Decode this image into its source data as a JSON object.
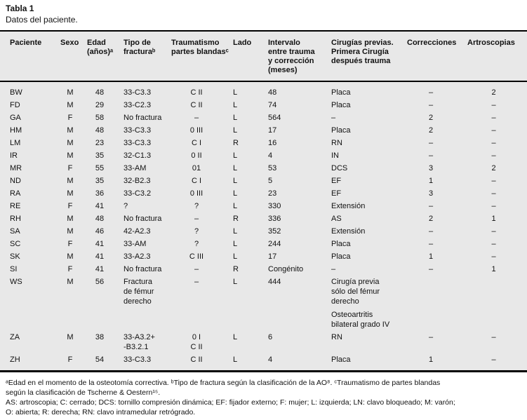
{
  "title": "Tabla 1",
  "subtitle": "Datos del paciente.",
  "colors": {
    "table_background": "#e8e8e8",
    "rule": "#000000",
    "text": "#111111"
  },
  "table": {
    "columns": [
      {
        "label": "Paciente"
      },
      {
        "label": "Sexo"
      },
      {
        "label": "Edad\n(años)ᵃ"
      },
      {
        "label": "Tipo de\nfracturaᵇ"
      },
      {
        "label": "Traumatismo\npartes blandasᶜ"
      },
      {
        "label": "Lado"
      },
      {
        "label": "Intervalo\nentre trauma\ny corrección\n(meses)"
      },
      {
        "label": "Cirugías previas.\nPrimera Cirugía\ndespués trauma"
      },
      {
        "label": "Correcciones"
      },
      {
        "label": "Artroscopias"
      }
    ],
    "rows": [
      [
        "BW",
        "M",
        "48",
        "33-C3.3",
        "C II",
        "L",
        "48",
        "Placa",
        "–",
        "2"
      ],
      [
        "FD",
        "M",
        "29",
        "33-C2.3",
        "C II",
        "L",
        "74",
        "Placa",
        "–",
        "–"
      ],
      [
        "GA",
        "F",
        "58",
        "No fractura",
        "–",
        "L",
        "564",
        "–",
        "2",
        "–"
      ],
      [
        "HM",
        "M",
        "48",
        "33-C3.3",
        "0 III",
        "L",
        "17",
        "Placa",
        "2",
        "–"
      ],
      [
        "LM",
        "M",
        "23",
        "33-C3.3",
        "C I",
        "R",
        "16",
        "RN",
        "–",
        "–"
      ],
      [
        "IR",
        "M",
        "35",
        "32-C1.3",
        "0 II",
        "L",
        "4",
        "IN",
        "–",
        "–"
      ],
      [
        "MR",
        "F",
        "55",
        "33-AM",
        "01",
        "L",
        "53",
        "DCS",
        "3",
        "2"
      ],
      [
        "ND",
        "M",
        "35",
        "32-B2.3",
        "C I",
        "L",
        "5",
        "EF",
        "1",
        "–"
      ],
      [
        "RA",
        "M",
        "36",
        "33-C3.2",
        "0 III",
        "L",
        "23",
        "EF",
        "3",
        "–"
      ],
      [
        "RE",
        "F",
        "41",
        "?",
        "?",
        "L",
        "330",
        "Extensión",
        "–",
        "–"
      ],
      [
        "RH",
        "M",
        "48",
        "No fractura",
        "–",
        "R",
        "336",
        "AS",
        "2",
        "1"
      ],
      [
        "SA",
        "M",
        "46",
        "42-A2.3",
        "?",
        "L",
        "352",
        "Extensión",
        "–",
        "–"
      ],
      [
        "SC",
        "F",
        "41",
        "33-AM",
        "?",
        "L",
        "244",
        "Placa",
        "–",
        "–"
      ],
      [
        "SK",
        "M",
        "41",
        "33-A2.3",
        "C III",
        "L",
        "17",
        "Placa",
        "1",
        "–"
      ],
      [
        "SI",
        "F",
        "41",
        "No fractura",
        "–",
        "R",
        "Congénito",
        "–",
        "–",
        "1"
      ],
      [
        "WS",
        "M",
        "56",
        "Fractura\nde fémur\nderecho",
        "–",
        "L",
        "444",
        "Cirugía previa\nsólo del fémur\nderecho\n\nOsteoartritis\nbilateral grado IV",
        "",
        ""
      ],
      [
        "ZA",
        "M",
        "38",
        "33-A3.2+\n-B3.2.1",
        "0 I\nC II",
        "L",
        "6",
        "RN",
        "–",
        "–"
      ],
      [
        "ZH",
        "F",
        "54",
        "33-C3.3",
        "C II",
        "L",
        "4",
        "Placa",
        "1",
        "–"
      ]
    ]
  },
  "footnotes": {
    "lines": [
      "ᵃEdad en el momento de la osteotomía correctiva. ᵇTipo de fractura según la clasificación de la AO⁸. ᶜTraumatismo de partes blandas",
      "según la clasificación de Tscherne & Oestern¹⁵.",
      "AS: artroscopia; C: cerrado; DCS: tornillo compresión dinámica; EF: fijador externo; F: mujer; L: izquierda; LN: clavo bloqueado; M: varón;",
      "O: abierta; R: derecha; RN: clavo intramedular retrógrado."
    ]
  }
}
